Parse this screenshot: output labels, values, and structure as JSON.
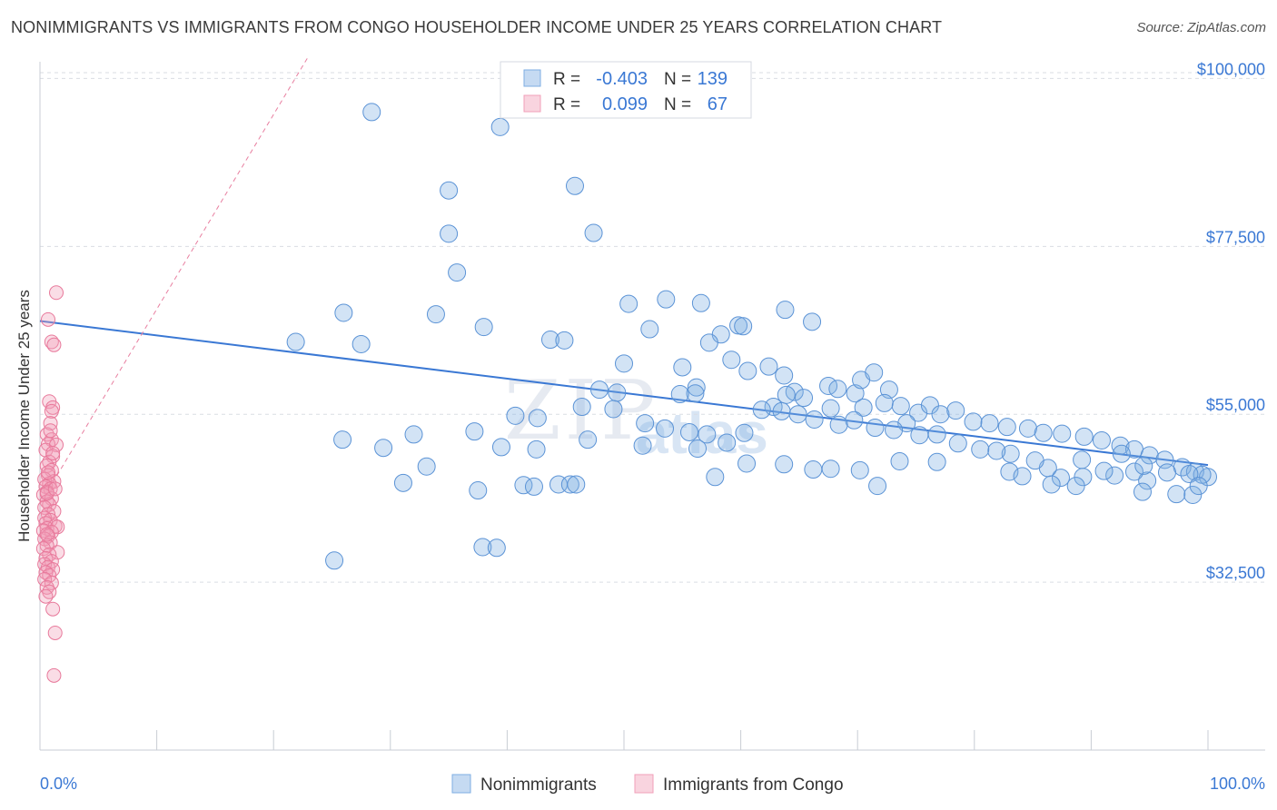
{
  "title": "NONIMMIGRANTS VS IMMIGRANTS FROM CONGO HOUSEHOLDER INCOME UNDER 25 YEARS CORRELATION CHART",
  "source": "Source: ZipAtlas.com",
  "watermark": {
    "zip": "ZIP",
    "atlas": "atlas"
  },
  "legend_top": {
    "rows": [
      {
        "r_label": "R =",
        "r_value": "-0.403",
        "n_label": "N =",
        "n_value": "139",
        "color": "#7eaee3"
      },
      {
        "r_label": "R =",
        "r_value": "0.099",
        "n_label": "N =",
        "n_value": "67",
        "color": "#f19fb8"
      }
    ]
  },
  "legend_bottom": [
    {
      "label": "Nonimmigrants",
      "color": "#7eaee3"
    },
    {
      "label": "Immigrants from Congo",
      "color": "#f19fb8"
    }
  ],
  "chart_data": {
    "type": "scatter",
    "title": "NONIMMIGRANTS VS IMMIGRANTS FROM CONGO HOUSEHOLDER INCOME UNDER 25 YEARS CORRELATION CHART",
    "xlabel": "",
    "ylabel": "Householder Income Under 25 years",
    "xlim": [
      0,
      100
    ],
    "ylim": [
      10000,
      102000
    ],
    "x_tick_labels": [
      "0.0%",
      "100.0%"
    ],
    "y_ticks": [
      32500,
      55000,
      77500,
      100000
    ],
    "y_tick_labels": [
      "$32,500",
      "$55,000",
      "$77,500",
      "$100,000"
    ],
    "grid": true,
    "legend_position": "top-center",
    "series": [
      {
        "name": "Nonimmigrants",
        "color": "#7eaee3",
        "stroke": "#5b93d6",
        "R": -0.403,
        "N": 139,
        "trend": {
          "x": [
            0,
            100
          ],
          "y": [
            67500,
            48200
          ]
        },
        "points": [
          [
            28.4,
            95500
          ],
          [
            39.4,
            93500
          ],
          [
            35,
            85000
          ],
          [
            45.8,
            85600
          ],
          [
            35,
            79200
          ],
          [
            47.4,
            79300
          ],
          [
            35.7,
            74000
          ],
          [
            26,
            68600
          ],
          [
            33.9,
            68400
          ],
          [
            50.4,
            69800
          ],
          [
            53.6,
            70400
          ],
          [
            56.6,
            69900
          ],
          [
            63.8,
            69000
          ],
          [
            21.9,
            64700
          ],
          [
            27.5,
            64400
          ],
          [
            38,
            66700
          ],
          [
            43.7,
            65000
          ],
          [
            44.9,
            64900
          ],
          [
            52.2,
            66400
          ],
          [
            58.3,
            65700
          ],
          [
            59.8,
            66900
          ],
          [
            66.1,
            67400
          ],
          [
            60.2,
            66800
          ],
          [
            57.3,
            64600
          ],
          [
            50,
            61800
          ],
          [
            55,
            61300
          ],
          [
            59.2,
            62300
          ],
          [
            62.4,
            61400
          ],
          [
            63.7,
            60200
          ],
          [
            64.6,
            58000
          ],
          [
            60.6,
            60800
          ],
          [
            56.2,
            58600
          ],
          [
            56.1,
            57800
          ],
          [
            47.9,
            58300
          ],
          [
            49.4,
            57900
          ],
          [
            54.8,
            57700
          ],
          [
            63.9,
            57600
          ],
          [
            65.4,
            57200
          ],
          [
            67.5,
            58800
          ],
          [
            68.3,
            58400
          ],
          [
            69.8,
            57800
          ],
          [
            70.3,
            59600
          ],
          [
            71.4,
            60600
          ],
          [
            72.7,
            58300
          ],
          [
            70.5,
            55900
          ],
          [
            62.8,
            56000
          ],
          [
            63.5,
            55400
          ],
          [
            64.9,
            55000
          ],
          [
            67.7,
            55800
          ],
          [
            72.3,
            56500
          ],
          [
            73.7,
            56100
          ],
          [
            75.2,
            55200
          ],
          [
            76.2,
            56200
          ],
          [
            77.1,
            55000
          ],
          [
            78.4,
            55500
          ],
          [
            79.9,
            54000
          ],
          [
            81.3,
            53800
          ],
          [
            82.8,
            53300
          ],
          [
            84.6,
            53100
          ],
          [
            85.9,
            52500
          ],
          [
            87.5,
            52400
          ],
          [
            89.4,
            52000
          ],
          [
            90.9,
            51500
          ],
          [
            92.5,
            50800
          ],
          [
            93.7,
            50300
          ],
          [
            95,
            49500
          ],
          [
            96.3,
            48900
          ],
          [
            97.8,
            47900
          ],
          [
            98.9,
            47300
          ],
          [
            100,
            46600
          ],
          [
            99.5,
            46900
          ],
          [
            98.4,
            47000
          ],
          [
            96.5,
            47200
          ],
          [
            94.8,
            46100
          ],
          [
            93.7,
            47300
          ],
          [
            92,
            46800
          ],
          [
            91.1,
            47400
          ],
          [
            89.3,
            46600
          ],
          [
            87.4,
            46500
          ],
          [
            86.3,
            47800
          ],
          [
            85.2,
            48800
          ],
          [
            83.1,
            49700
          ],
          [
            81.9,
            50100
          ],
          [
            80.5,
            50300
          ],
          [
            78.6,
            51100
          ],
          [
            76.8,
            52300
          ],
          [
            75.3,
            52200
          ],
          [
            74.2,
            53800
          ],
          [
            73.1,
            52900
          ],
          [
            71.5,
            53200
          ],
          [
            69.7,
            54200
          ],
          [
            68.4,
            53600
          ],
          [
            66.3,
            54300
          ],
          [
            61.8,
            55600
          ],
          [
            60.3,
            52500
          ],
          [
            58.8,
            51200
          ],
          [
            57.1,
            52300
          ],
          [
            55.6,
            52600
          ],
          [
            53.5,
            53100
          ],
          [
            51.8,
            53800
          ],
          [
            49.1,
            55700
          ],
          [
            46.4,
            56000
          ],
          [
            40.7,
            54800
          ],
          [
            42.6,
            54500
          ],
          [
            37.2,
            52700
          ],
          [
            32,
            52300
          ],
          [
            25.9,
            51600
          ],
          [
            29.4,
            50500
          ],
          [
            39.5,
            50600
          ],
          [
            42.5,
            50300
          ],
          [
            46.9,
            51600
          ],
          [
            51.6,
            50800
          ],
          [
            56.3,
            50400
          ],
          [
            60.5,
            48400
          ],
          [
            63.7,
            48300
          ],
          [
            67.7,
            47700
          ],
          [
            70.2,
            47500
          ],
          [
            73.6,
            48700
          ],
          [
            76.8,
            48600
          ],
          [
            83,
            47300
          ],
          [
            84.1,
            46700
          ],
          [
            89.2,
            48900
          ],
          [
            92.6,
            49700
          ],
          [
            94.5,
            48100
          ],
          [
            31.1,
            45800
          ],
          [
            33.1,
            48000
          ],
          [
            41.4,
            45500
          ],
          [
            42.3,
            45300
          ],
          [
            44.4,
            45600
          ],
          [
            45.4,
            45600
          ],
          [
            45.9,
            45600
          ],
          [
            37.5,
            44800
          ],
          [
            57.8,
            46600
          ],
          [
            66.2,
            47600
          ],
          [
            71.7,
            45400
          ],
          [
            86.6,
            45600
          ],
          [
            88.7,
            45400
          ],
          [
            94.4,
            44600
          ],
          [
            97.3,
            44300
          ],
          [
            98.7,
            44200
          ],
          [
            99.2,
            45400
          ],
          [
            37.9,
            37200
          ],
          [
            39.1,
            37100
          ],
          [
            25.2,
            35400
          ]
        ]
      },
      {
        "name": "Immigrants from Congo",
        "color": "#f19fb8",
        "stroke": "#e8799b",
        "R": 0.099,
        "N": 67,
        "trend": {
          "x": [
            0,
            23
          ],
          "y": [
            43000,
            103000
          ]
        },
        "points": [
          [
            1.4,
            71300
          ],
          [
            0.7,
            67700
          ],
          [
            1.0,
            64700
          ],
          [
            1.2,
            64300
          ],
          [
            0.8,
            56700
          ],
          [
            1.1,
            55900
          ],
          [
            1.0,
            55400
          ],
          [
            0.9,
            53800
          ],
          [
            0.6,
            52300
          ],
          [
            1.0,
            51600
          ],
          [
            0.7,
            51000
          ],
          [
            1.4,
            50900
          ],
          [
            0.5,
            50200
          ],
          [
            1.1,
            49400
          ],
          [
            0.8,
            48600
          ],
          [
            0.6,
            48100
          ],
          [
            1.0,
            47500
          ],
          [
            0.7,
            46800
          ],
          [
            0.4,
            46300
          ],
          [
            1.2,
            46000
          ],
          [
            0.8,
            45700
          ],
          [
            0.5,
            45300
          ],
          [
            0.9,
            45000
          ],
          [
            0.6,
            44600
          ],
          [
            0.3,
            44200
          ],
          [
            1.0,
            43700
          ],
          [
            0.6,
            43300
          ],
          [
            0.8,
            42900
          ],
          [
            0.4,
            42500
          ],
          [
            1.2,
            42000
          ],
          [
            0.7,
            41600
          ],
          [
            0.4,
            41100
          ],
          [
            0.9,
            40800
          ],
          [
            0.5,
            40400
          ],
          [
            1.3,
            40000
          ],
          [
            0.6,
            39700
          ],
          [
            1.5,
            39900
          ],
          [
            0.3,
            39400
          ],
          [
            1.0,
            39200
          ],
          [
            0.7,
            38700
          ],
          [
            0.4,
            38300
          ],
          [
            0.9,
            37800
          ],
          [
            0.6,
            37400
          ],
          [
            0.3,
            37000
          ],
          [
            1.5,
            36500
          ],
          [
            0.8,
            36200
          ],
          [
            0.5,
            35700
          ],
          [
            1.0,
            35300
          ],
          [
            0.4,
            34900
          ],
          [
            0.7,
            34500
          ],
          [
            1.1,
            34200
          ],
          [
            0.5,
            33800
          ],
          [
            0.8,
            33400
          ],
          [
            0.4,
            32900
          ],
          [
            1.0,
            32400
          ],
          [
            0.6,
            31800
          ],
          [
            0.8,
            31200
          ],
          [
            0.5,
            30600
          ],
          [
            1.1,
            28900
          ],
          [
            1.3,
            25700
          ],
          [
            1.2,
            20000
          ],
          [
            0.6,
            44400
          ],
          [
            1.3,
            45000
          ],
          [
            0.9,
            52800
          ],
          [
            0.7,
            47200
          ],
          [
            1.1,
            49800
          ],
          [
            0.6,
            38900
          ]
        ]
      }
    ]
  }
}
